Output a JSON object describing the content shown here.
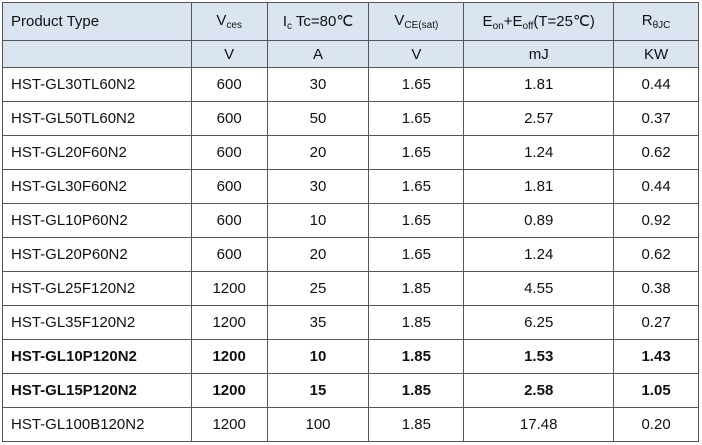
{
  "header": [
    [
      "Product Type"
    ],
    [
      "V",
      "ces"
    ],
    [
      "I",
      "c",
      " Tc=80℃"
    ],
    [
      "V",
      "CE(sat)"
    ],
    [
      "E",
      "on",
      "+E",
      "off",
      "(T=25℃)"
    ],
    [
      "R",
      "θJC"
    ]
  ],
  "units": [
    "V",
    "A",
    "V",
    "mJ",
    "KW"
  ],
  "rows": [
    {
      "cells": [
        "HST-GL30TL60N2",
        "600",
        "30",
        "1.65",
        "1.81",
        "0.44"
      ]
    },
    {
      "cells": [
        "HST-GL50TL60N2",
        "600",
        "50",
        "1.65",
        "2.57",
        "0.37"
      ]
    },
    {
      "cells": [
        "HST-GL20F60N2",
        "600",
        "20",
        "1.65",
        "1.24",
        "0.62"
      ]
    },
    {
      "cells": [
        "HST-GL30F60N2",
        "600",
        "30",
        "1.65",
        "1.81",
        "0.44"
      ]
    },
    {
      "cells": [
        "HST-GL10P60N2",
        "600",
        "10",
        "1.65",
        "0.89",
        "0.92"
      ]
    },
    {
      "cells": [
        "HST-GL20P60N2",
        "600",
        "20",
        "1.65",
        "1.24",
        "0.62"
      ]
    },
    {
      "cells": [
        "HST-GL25F120N2",
        "1200",
        "25",
        "1.85",
        "4.55",
        "0.38"
      ]
    },
    {
      "cells": [
        "HST-GL35F120N2",
        "1200",
        "35",
        "1.85",
        "6.25",
        "0.27"
      ]
    },
    {
      "cells": [
        "HST-GL10P120N2",
        "1200",
        "10",
        "1.85",
        "1.53",
        "1.43"
      ],
      "bold": true
    },
    {
      "cells": [
        "HST-GL15P120N2",
        "1200",
        "15",
        "1.85",
        "2.58",
        "1.05"
      ],
      "bold": true
    },
    {
      "cells": [
        "HST-GL100B120N2",
        "1200",
        "100",
        "1.85",
        "17.48",
        "0.20"
      ]
    }
  ]
}
